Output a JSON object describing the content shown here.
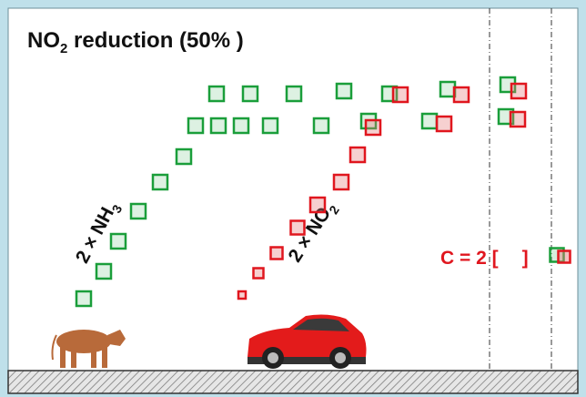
{
  "title": {
    "main": "NO",
    "sub": "2",
    "rest": " reduction (50% )"
  },
  "labels": [
    {
      "main": "2 × NH",
      "sub": "3"
    },
    {
      "main": "2 × NO",
      "sub": "2"
    }
  ],
  "note": {
    "text": "C = 2 [",
    "close": "]"
  }
}
